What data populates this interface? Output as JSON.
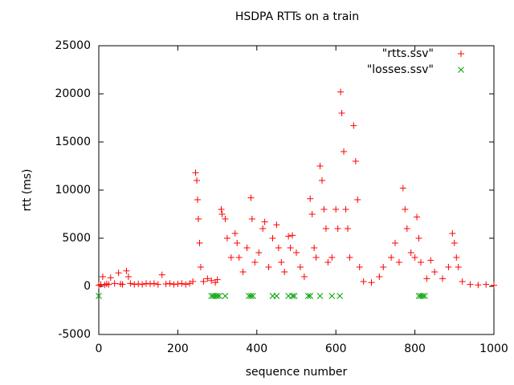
{
  "chart_data": {
    "type": "scatter",
    "title": "HSDPA RTTs on a train",
    "xlabel": "sequence number",
    "ylabel": "rtt (ms)",
    "xlim": [
      0,
      1000
    ],
    "ylim": [
      -5000,
      25000
    ],
    "xticks": [
      0,
      200,
      400,
      600,
      800,
      1000
    ],
    "yticks": [
      -5000,
      0,
      5000,
      10000,
      15000,
      20000,
      25000
    ],
    "grid": false,
    "legend": "top-right",
    "series": [
      {
        "name": "\"rtts.ssv\"",
        "color": "#ff0000",
        "marker": "+",
        "x": [
          0,
          5,
          10,
          15,
          20,
          25,
          30,
          40,
          50,
          55,
          60,
          70,
          75,
          80,
          90,
          100,
          110,
          120,
          130,
          140,
          150,
          160,
          170,
          180,
          190,
          200,
          210,
          220,
          230,
          238,
          245,
          248,
          250,
          252,
          255,
          258,
          265,
          275,
          285,
          295,
          300,
          310,
          312,
          320,
          325,
          335,
          345,
          350,
          355,
          365,
          375,
          385,
          388,
          395,
          405,
          415,
          420,
          430,
          440,
          450,
          455,
          462,
          470,
          480,
          485,
          490,
          500,
          510,
          520,
          535,
          540,
          545,
          550,
          560,
          565,
          570,
          575,
          580,
          590,
          600,
          605,
          612,
          615,
          620,
          625,
          630,
          635,
          645,
          650,
          655,
          660,
          670,
          690,
          710,
          720,
          740,
          750,
          760,
          770,
          775,
          780,
          790,
          800,
          805,
          810,
          815,
          830,
          840,
          850,
          870,
          885,
          895,
          900,
          905,
          910,
          920,
          940,
          960,
          980,
          1000
        ],
        "values": [
          100,
          200,
          1000,
          150,
          250,
          200,
          900,
          300,
          1400,
          250,
          200,
          1600,
          1000,
          300,
          200,
          250,
          200,
          300,
          250,
          300,
          200,
          1200,
          250,
          300,
          200,
          250,
          300,
          200,
          300,
          500,
          11800,
          11000,
          9000,
          7000,
          4500,
          2000,
          500,
          800,
          600,
          400,
          700,
          8000,
          7500,
          7000,
          5000,
          3000,
          5500,
          4500,
          3000,
          1500,
          4000,
          9200,
          7000,
          2500,
          3500,
          6000,
          6700,
          2000,
          5000,
          6400,
          4000,
          2500,
          1500,
          5200,
          4000,
          5300,
          3500,
          2000,
          1000,
          9100,
          7500,
          4000,
          3000,
          12500,
          11000,
          8000,
          6000,
          2500,
          3000,
          8000,
          6000,
          20200,
          18000,
          14000,
          8000,
          6000,
          3000,
          16700,
          13000,
          9000,
          2000,
          500,
          400,
          1000,
          2000,
          3000,
          4500,
          2500,
          10200,
          8000,
          6000,
          3500,
          3000,
          7200,
          5000,
          2500,
          800,
          2700,
          1500,
          800,
          2000,
          5500,
          4500,
          3000,
          2000,
          500,
          200,
          150,
          200,
          100
        ]
      },
      {
        "name": "\"losses.ssv\"",
        "color": "#00a000",
        "marker": "x",
        "x": [
          0,
          285,
          290,
          295,
          300,
          305,
          320,
          380,
          385,
          390,
          440,
          450,
          480,
          490,
          495,
          530,
          535,
          560,
          590,
          610,
          810,
          815,
          820,
          825
        ],
        "values": [
          -1000,
          -1000,
          -1000,
          -1000,
          -1000,
          -1000,
          -1000,
          -1000,
          -1000,
          -1000,
          -1000,
          -1000,
          -1000,
          -1000,
          -1000,
          -1000,
          -1000,
          -1000,
          -1000,
          -1000,
          -1000,
          -1000,
          -1000,
          -1000
        ]
      }
    ]
  }
}
